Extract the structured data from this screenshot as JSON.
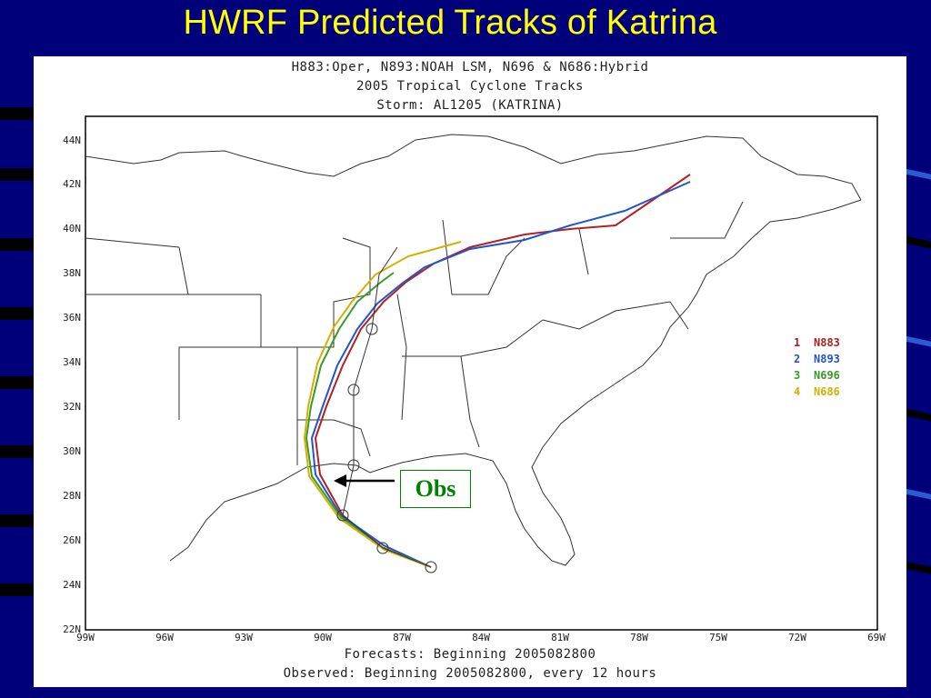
{
  "slide": {
    "title": "HWRF Predicted Tracks of Katrina"
  },
  "map": {
    "header": [
      "H883:Oper, N893:NOAH LSM, N696 & N686:Hybrid",
      "2005 Tropical Cyclone Tracks",
      "Storm: AL1205 (KATRINA)"
    ],
    "footer": [
      "Forecasts: Beginning 2005082800",
      "Observed: Beginning 2005082800, every 12 hours"
    ],
    "lat_labels": [
      "44N",
      "42N",
      "40N",
      "38N",
      "36N",
      "34N",
      "32N",
      "30N",
      "28N",
      "26N",
      "24N",
      "22N"
    ],
    "lon_labels": [
      "99W",
      "96W",
      "93W",
      "90W",
      "87W",
      "84W",
      "81W",
      "78W",
      "75W",
      "72W",
      "69W"
    ],
    "legend": [
      {
        "num": "1",
        "name": "N883",
        "color": "#b22222"
      },
      {
        "num": "2",
        "name": "N893",
        "color": "#2255cc"
      },
      {
        "num": "3",
        "name": "N696",
        "color": "#3a9a2a"
      },
      {
        "num": "4",
        "name": "N686",
        "color": "#d4b000"
      }
    ],
    "obs_label": "Obs"
  }
}
